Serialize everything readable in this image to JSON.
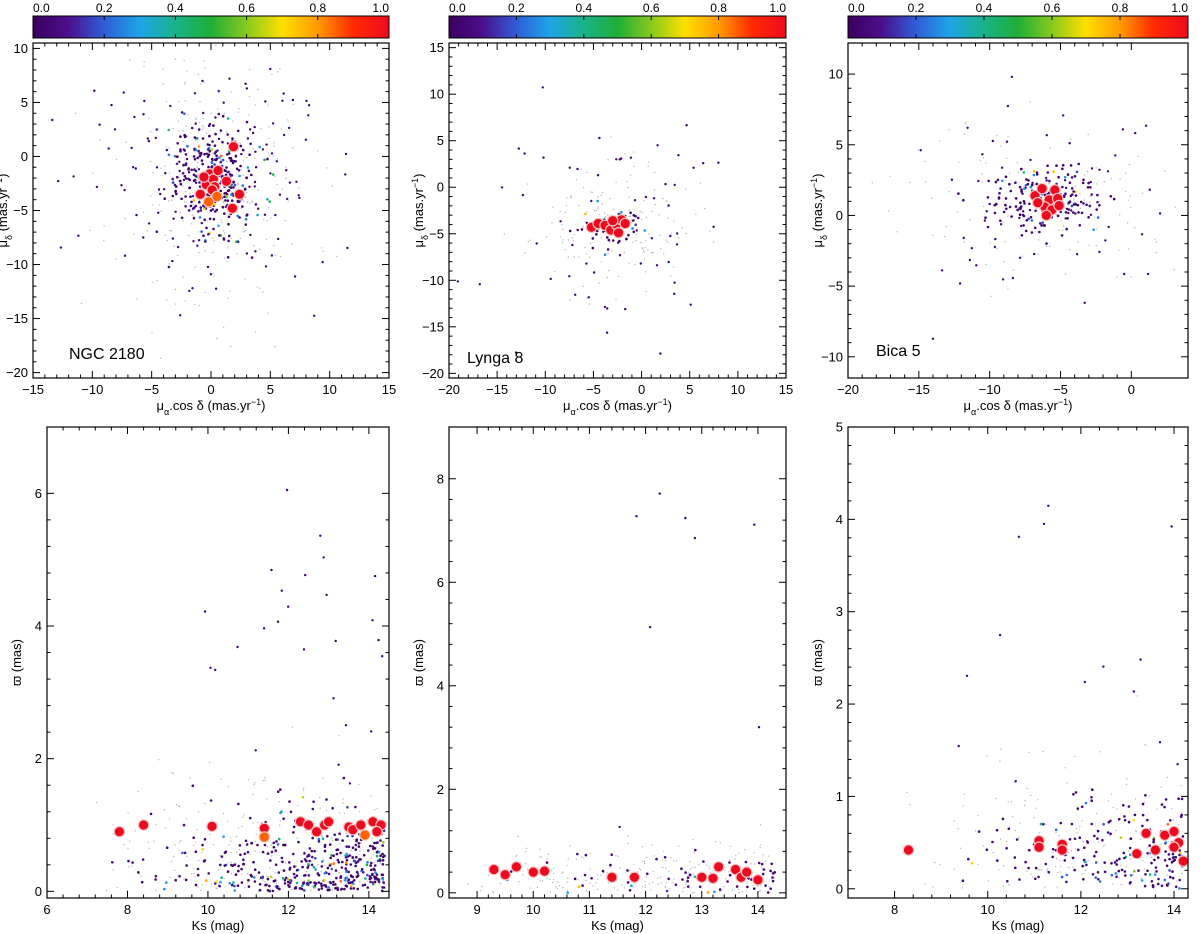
{
  "colorscale": {
    "ticks": [
      "0.0",
      "0.2",
      "0.4",
      "0.6",
      "0.8",
      "1.0"
    ],
    "stops": [
      "#3b0060",
      "#4b0f8c",
      "#2f5dd6",
      "#1ea4e8",
      "#19b38a",
      "#1fae36",
      "#88c91e",
      "#ffe000",
      "#ff9a00",
      "#ff2a00",
      "#ee0a1e"
    ]
  },
  "chart_data": [
    {
      "type": "scatter",
      "panel": "vpd",
      "cluster": "NGC 2180",
      "xlabel_html": "μ<tspan baseline-shift=\"sub\" font-size=\"9\">α</tspan>.cos δ (mas.yr<tspan baseline-shift=\"super\" font-size=\"9\">−1</tspan>)",
      "ylabel_html": "μ<tspan baseline-shift=\"sub\" font-size=\"9\">δ</tspan> (mas.yr<tspan baseline-shift=\"super\" font-size=\"9\">−1</tspan>)",
      "xlim": [
        -15,
        15
      ],
      "ylim": [
        -20.5,
        10.5
      ],
      "xticks": [
        -15,
        -10,
        -5,
        0,
        5,
        10,
        15
      ],
      "yticks": [
        -20,
        -15,
        -10,
        -5,
        0,
        5,
        10
      ],
      "members": [
        {
          "x": -0.9,
          "y": -3.5,
          "p": 1.0
        },
        {
          "x": -0.4,
          "y": -2.6,
          "p": 1.0
        },
        {
          "x": -0.1,
          "y": -1.6,
          "p": 1.0
        },
        {
          "x": 0.2,
          "y": -2.1,
          "p": 1.0
        },
        {
          "x": 0.6,
          "y": -1.3,
          "p": 1.0
        },
        {
          "x": 0.3,
          "y": -2.8,
          "p": 1.0
        },
        {
          "x": 1.3,
          "y": -2.3,
          "p": 1.0
        },
        {
          "x": 1.9,
          "y": 0.9,
          "p": 1.0
        },
        {
          "x": 2.4,
          "y": -3.5,
          "p": 1.0
        },
        {
          "x": 1.8,
          "y": -4.8,
          "p": 1.0
        },
        {
          "x": -0.6,
          "y": -1.9,
          "p": 1.0
        },
        {
          "x": 0.1,
          "y": -3.1,
          "p": 1.0
        },
        {
          "x": 0.5,
          "y": -3.7,
          "p": 0.85
        },
        {
          "x": -0.2,
          "y": -4.2,
          "p": 0.85
        }
      ],
      "field": {
        "n_cluster": 320,
        "cx": 0.3,
        "cy": -2.0,
        "sx": 1.6,
        "sy": 2.6,
        "n_scatter": 140,
        "n_faint": 260,
        "seed": 11
      }
    },
    {
      "type": "scatter",
      "panel": "vpd",
      "cluster": "Lynga 8",
      "xlabel_html": "μ<tspan baseline-shift=\"sub\" font-size=\"9\">α</tspan>.cos δ (mas.yr<tspan baseline-shift=\"super\" font-size=\"9\">−1</tspan>)",
      "ylabel_html": "μ<tspan baseline-shift=\"sub\" font-size=\"9\">δ</tspan> (mas.yr<tspan baseline-shift=\"super\" font-size=\"9\">−1</tspan>)",
      "xlim": [
        -20,
        15
      ],
      "ylim": [
        -20.5,
        15.5
      ],
      "xticks": [
        -20,
        -15,
        -10,
        -5,
        0,
        5,
        10,
        15
      ],
      "yticks": [
        -20,
        -15,
        -10,
        -5,
        0,
        5,
        10,
        15
      ],
      "members": [
        {
          "x": -5.2,
          "y": -4.3,
          "p": 1.0
        },
        {
          "x": -4.5,
          "y": -3.9,
          "p": 1.0
        },
        {
          "x": -3.8,
          "y": -4.1,
          "p": 1.0
        },
        {
          "x": -3.2,
          "y": -4.6,
          "p": 1.0
        },
        {
          "x": -2.6,
          "y": -4.0,
          "p": 1.0
        },
        {
          "x": -2.1,
          "y": -3.5,
          "p": 1.0
        },
        {
          "x": -2.4,
          "y": -4.9,
          "p": 1.0
        },
        {
          "x": -3.0,
          "y": -3.6,
          "p": 1.0
        },
        {
          "x": -1.7,
          "y": -3.9,
          "p": 1.0
        }
      ],
      "field": {
        "n_cluster": 60,
        "cx": -3.0,
        "cy": -4.2,
        "sx": 1.6,
        "sy": 1.2,
        "n_scatter": 60,
        "n_faint": 160,
        "seed": 23
      }
    },
    {
      "type": "scatter",
      "panel": "vpd",
      "cluster": "Bica 5",
      "xlabel_html": "μ<tspan baseline-shift=\"sub\" font-size=\"9\">α</tspan>.cos δ (mas.yr<tspan baseline-shift=\"super\" font-size=\"9\">−1</tspan>)",
      "ylabel_html": "μ<tspan baseline-shift=\"sub\" font-size=\"9\">δ</tspan> (mas.yr<tspan baseline-shift=\"super\" font-size=\"9\">−1</tspan>)",
      "xlim": [
        -20,
        4
      ],
      "ylim": [
        -11.5,
        12.2
      ],
      "xticks": [
        -20,
        -15,
        -10,
        -5,
        0
      ],
      "yticks": [
        -10,
        -5,
        0,
        5,
        10
      ],
      "members": [
        {
          "x": -6.8,
          "y": 1.4,
          "p": 1.0
        },
        {
          "x": -6.3,
          "y": 1.9,
          "p": 1.0
        },
        {
          "x": -5.8,
          "y": 1.1,
          "p": 1.0
        },
        {
          "x": -6.1,
          "y": 0.6,
          "p": 1.0
        },
        {
          "x": -5.4,
          "y": 1.8,
          "p": 1.0
        },
        {
          "x": -5.2,
          "y": 1.2,
          "p": 1.0
        },
        {
          "x": -5.6,
          "y": 0.4,
          "p": 1.0
        },
        {
          "x": -6.6,
          "y": 0.9,
          "p": 1.0
        },
        {
          "x": -6.0,
          "y": 0.0,
          "p": 1.0
        },
        {
          "x": -5.1,
          "y": 0.7,
          "p": 1.0
        }
      ],
      "field": {
        "n_cluster": 180,
        "cx": -6.0,
        "cy": 1.1,
        "sx": 2.0,
        "sy": 1.1,
        "n_scatter": 70,
        "n_faint": 120,
        "seed": 37
      }
    },
    {
      "type": "scatter",
      "panel": "parallax",
      "cluster": "NGC 2180",
      "xlabel": "Ks (mag)",
      "ylabel_html": "ϖ (mas)",
      "xlim": [
        6,
        14.5
      ],
      "ylim": [
        -0.1,
        7.0
      ],
      "xticks": [
        6,
        8,
        10,
        12,
        14
      ],
      "yticks": [
        0,
        2,
        4,
        6
      ],
      "members": [
        {
          "x": 7.8,
          "y": 0.9,
          "p": 1.0
        },
        {
          "x": 8.4,
          "y": 1.0,
          "p": 1.0
        },
        {
          "x": 10.1,
          "y": 0.98,
          "p": 1.0
        },
        {
          "x": 11.4,
          "y": 0.95,
          "p": 1.0
        },
        {
          "x": 11.4,
          "y": 0.82,
          "p": 0.85
        },
        {
          "x": 12.3,
          "y": 1.05,
          "p": 1.0
        },
        {
          "x": 12.5,
          "y": 1.0,
          "p": 1.0
        },
        {
          "x": 12.7,
          "y": 0.9,
          "p": 1.0
        },
        {
          "x": 12.9,
          "y": 1.0,
          "p": 1.0
        },
        {
          "x": 13.0,
          "y": 1.05,
          "p": 1.0
        },
        {
          "x": 13.5,
          "y": 0.97,
          "p": 1.0
        },
        {
          "x": 13.6,
          "y": 0.93,
          "p": 1.0
        },
        {
          "x": 13.8,
          "y": 1.0,
          "p": 1.0
        },
        {
          "x": 13.9,
          "y": 0.85,
          "p": 0.85
        },
        {
          "x": 14.1,
          "y": 1.05,
          "p": 1.0
        },
        {
          "x": 14.3,
          "y": 1.0,
          "p": 1.0
        },
        {
          "x": 14.2,
          "y": 0.9,
          "p": 1.0
        }
      ],
      "field": {
        "kmin": 7.0,
        "kmax": 14.4,
        "ymean": 0.35,
        "yspread": 0.45,
        "n_field": 420,
        "n_faint": 260,
        "n_high": 26,
        "seed": 51
      }
    },
    {
      "type": "scatter",
      "panel": "parallax",
      "cluster": "Lynga 8",
      "xlabel": "Ks (mag)",
      "ylabel_html": "ϖ (mas)",
      "xlim": [
        8.5,
        14.5
      ],
      "ylim": [
        -0.1,
        9.0
      ],
      "xticks": [
        9,
        10,
        11,
        12,
        13,
        14
      ],
      "yticks": [
        0,
        2,
        4,
        6,
        8
      ],
      "members": [
        {
          "x": 9.3,
          "y": 0.45,
          "p": 1.0
        },
        {
          "x": 9.5,
          "y": 0.35,
          "p": 1.0
        },
        {
          "x": 9.7,
          "y": 0.5,
          "p": 1.0
        },
        {
          "x": 10.0,
          "y": 0.4,
          "p": 1.0
        },
        {
          "x": 10.2,
          "y": 0.42,
          "p": 1.0
        },
        {
          "x": 11.4,
          "y": 0.3,
          "p": 1.0
        },
        {
          "x": 11.8,
          "y": 0.3,
          "p": 1.0
        },
        {
          "x": 13.0,
          "y": 0.3,
          "p": 1.0
        },
        {
          "x": 13.2,
          "y": 0.28,
          "p": 1.0
        },
        {
          "x": 13.3,
          "y": 0.5,
          "p": 1.0
        },
        {
          "x": 13.6,
          "y": 0.45,
          "p": 1.0
        },
        {
          "x": 13.7,
          "y": 0.3,
          "p": 1.0
        },
        {
          "x": 13.8,
          "y": 0.4,
          "p": 1.0
        },
        {
          "x": 14.0,
          "y": 0.25,
          "p": 1.0
        }
      ],
      "field": {
        "kmin": 8.8,
        "kmax": 14.3,
        "ymean": 0.35,
        "yspread": 0.2,
        "n_field": 70,
        "n_faint": 220,
        "n_high": 8,
        "seed": 63
      }
    },
    {
      "type": "scatter",
      "panel": "parallax",
      "cluster": "Bica 5",
      "xlabel": "Ks (mag)",
      "ylabel_html": "ϖ (mas)",
      "xlim": [
        7,
        14.3
      ],
      "ylim": [
        -0.1,
        5.0
      ],
      "xticks": [
        8,
        10,
        12,
        14
      ],
      "yticks": [
        0,
        1,
        2,
        3,
        4,
        5
      ],
      "members": [
        {
          "x": 8.3,
          "y": 0.42,
          "p": 1.0
        },
        {
          "x": 11.1,
          "y": 0.52,
          "p": 1.0
        },
        {
          "x": 11.1,
          "y": 0.45,
          "p": 1.0
        },
        {
          "x": 11.6,
          "y": 0.48,
          "p": 1.0
        },
        {
          "x": 11.6,
          "y": 0.42,
          "p": 1.0
        },
        {
          "x": 13.2,
          "y": 0.38,
          "p": 1.0
        },
        {
          "x": 13.4,
          "y": 0.6,
          "p": 1.0
        },
        {
          "x": 13.6,
          "y": 0.42,
          "p": 1.0
        },
        {
          "x": 13.8,
          "y": 0.58,
          "p": 1.0
        },
        {
          "x": 14.0,
          "y": 0.62,
          "p": 1.0
        },
        {
          "x": 14.1,
          "y": 0.5,
          "p": 1.0
        },
        {
          "x": 14.0,
          "y": 0.45,
          "p": 1.0
        },
        {
          "x": 14.2,
          "y": 0.3,
          "p": 1.0
        }
      ],
      "field": {
        "kmin": 8.0,
        "kmax": 14.2,
        "ymean": 0.35,
        "yspread": 0.35,
        "n_field": 200,
        "n_faint": 160,
        "n_high": 14,
        "seed": 79
      }
    }
  ]
}
